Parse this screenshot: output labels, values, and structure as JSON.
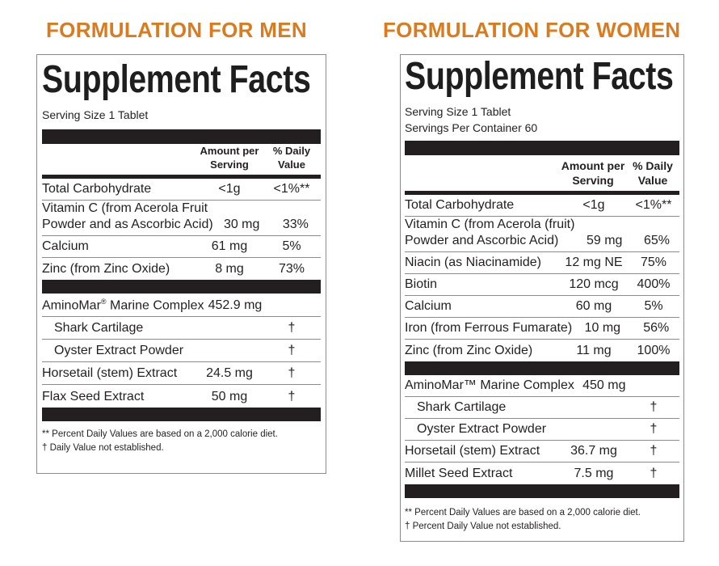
{
  "men": {
    "heading": "FORMULATION FOR MEN",
    "title": "Supplement Facts",
    "serving_size": "Serving Size 1 Tablet",
    "col_amount": [
      "Amount per",
      "Serving"
    ],
    "col_dv": [
      "% Daily",
      "Value"
    ],
    "rows_a": [
      {
        "name": [
          "Total Carbohydrate"
        ],
        "amount": "<1g",
        "dv": "<1%**"
      },
      {
        "name": [
          "Vitamin C (from Acerola Fruit",
          "Powder and as Ascorbic Acid)"
        ],
        "amount": "30 mg",
        "dv": "33%"
      },
      {
        "name": [
          "Calcium"
        ],
        "amount": "61 mg",
        "dv": "5%"
      },
      {
        "name": [
          "Zinc (from Zinc Oxide)"
        ],
        "amount": "8 mg",
        "dv": "73%"
      }
    ],
    "rows_b": [
      {
        "name": "AminoMar",
        "sup": "®",
        "name_rest": " Marine Complex",
        "amount": "452.9 mg",
        "dv": "",
        "indent": false
      },
      {
        "name": "Shark Cartilage",
        "sup": "",
        "name_rest": "",
        "amount": "",
        "dv": "†",
        "indent": true
      },
      {
        "name": "Oyster Extract Powder",
        "sup": "",
        "name_rest": "",
        "amount": "",
        "dv": "†",
        "indent": true
      },
      {
        "name": "Horsetail (stem) Extract",
        "sup": "",
        "name_rest": "",
        "amount": "24.5 mg",
        "dv": "†",
        "indent": false
      },
      {
        "name": "Flax Seed Extract",
        "sup": "",
        "name_rest": "",
        "amount": "50 mg",
        "dv": "†",
        "indent": false
      }
    ],
    "footnotes": [
      "** Percent Daily Values are based on a 2,000 calorie diet.",
      "† Daily Value not established."
    ]
  },
  "women": {
    "heading": "FORMULATION FOR WOMEN",
    "title": "Supplement Facts",
    "serving_size": "Serving Size 1 Tablet",
    "servings_per_container": "Servings Per Container 60",
    "col_amount": [
      "Amount per",
      "Serving"
    ],
    "col_dv": [
      "% Daily",
      "Value"
    ],
    "rows_a": [
      {
        "name": [
          "Total Carbohydrate"
        ],
        "amount": "<1g",
        "dv": "<1%**"
      },
      {
        "name": [
          "Vitamin C (from Acerola (fruit)",
          "Powder and Ascorbic Acid)"
        ],
        "amount": "59 mg",
        "dv": "65%"
      },
      {
        "name": [
          "Niacin (as Niacinamide)"
        ],
        "amount": "12 mg NE",
        "dv": "75%"
      },
      {
        "name": [
          "Biotin"
        ],
        "amount": "120 mcg",
        "dv": "400%"
      },
      {
        "name": [
          "Calcium"
        ],
        "amount": "60 mg",
        "dv": "5%"
      },
      {
        "name": [
          "Iron (from Ferrous Fumarate)"
        ],
        "amount": "10 mg",
        "dv": "56%"
      },
      {
        "name": [
          "Zinc (from Zinc Oxide)"
        ],
        "amount": "11 mg",
        "dv": "100%"
      }
    ],
    "rows_b": [
      {
        "name": "AminoMar™ Marine Complex",
        "amount": "450 mg",
        "dv": "",
        "indent": false
      },
      {
        "name": "Shark Cartilage",
        "amount": "",
        "dv": "†",
        "indent": true
      },
      {
        "name": "Oyster Extract Powder",
        "amount": "",
        "dv": "†",
        "indent": true
      },
      {
        "name": "Horsetail (stem) Extract",
        "amount": "36.7 mg",
        "dv": "†",
        "indent": false
      },
      {
        "name": "Millet Seed Extract",
        "amount": "7.5 mg",
        "dv": "†",
        "indent": false
      }
    ],
    "footnotes": [
      "** Percent Daily Values are based on a 2,000 calorie diet.",
      "† Percent Daily Value not established."
    ]
  }
}
